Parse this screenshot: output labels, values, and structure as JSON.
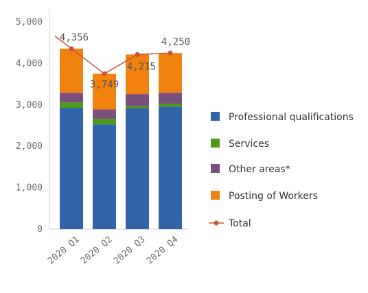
{
  "chart_data": {
    "type": "bar",
    "stacked": true,
    "categories": [
      "2020 Q1",
      "2020 Q2",
      "2020 Q3",
      "2020 Q4"
    ],
    "ylim": [
      0,
      5000
    ],
    "y_ticks": [
      "0",
      "1,000",
      "2,000",
      "3,000",
      "4,000",
      "5,000"
    ],
    "series": [
      {
        "name": "Professional qualifications",
        "color": "#3164a8",
        "values": [
          2930,
          2530,
          2920,
          2960
        ]
      },
      {
        "name": "Services",
        "color": "#4d9a16",
        "values": [
          130,
          130,
          50,
          70
        ]
      },
      {
        "name": "Other areas*",
        "color": "#7a4f7d",
        "values": [
          230,
          230,
          290,
          260
        ]
      },
      {
        "name": "Posting of Workers",
        "color": "#f2820f",
        "values": [
          1066,
          859,
          955,
          960
        ]
      }
    ],
    "total": {
      "name": "Total",
      "color": "#c85438",
      "values": [
        4356,
        3749,
        4215,
        4250
      ],
      "labels": [
        "4,356",
        "3,749",
        "4,215",
        "4,250"
      ]
    },
    "grid": false,
    "legend_position": "right"
  }
}
